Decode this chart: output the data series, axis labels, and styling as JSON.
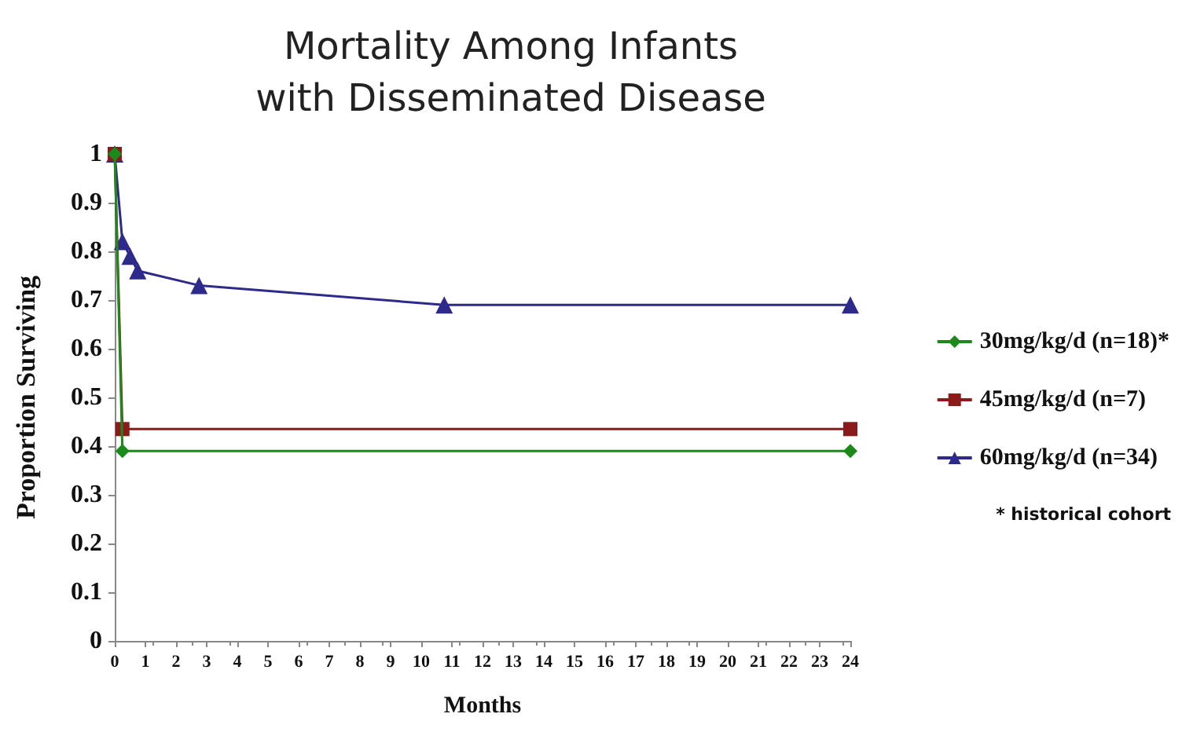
{
  "chart_data": {
    "type": "line",
    "title": "Mortality Among Infants\nwith Disseminated Disease",
    "xlabel": "Months",
    "ylabel": "Proportion Surviving",
    "xlim": [
      0,
      24
    ],
    "xticks": [
      0,
      1,
      2,
      3,
      4,
      5,
      6,
      7,
      8,
      9,
      10,
      11,
      12,
      13,
      14,
      15,
      16,
      17,
      18,
      19,
      20,
      21,
      22,
      23,
      24
    ],
    "ylim": [
      0,
      1
    ],
    "yticks": [
      0,
      0.1,
      0.2,
      0.3,
      0.4,
      0.5,
      0.6,
      0.7,
      0.8,
      0.9,
      1
    ],
    "series": [
      {
        "name": "30mg/kg/d (n=18)*",
        "color": "#1a8a1a",
        "marker": "diamond",
        "x": [
          0,
          0.25,
          24
        ],
        "values": [
          1,
          0.39,
          0.39
        ]
      },
      {
        "name": "45mg/kg/d (n=7)",
        "color": "#8b1a1a",
        "marker": "square",
        "x": [
          0,
          0.25,
          24
        ],
        "values": [
          1,
          0.435,
          0.435
        ]
      },
      {
        "name": "60mg/kg/d (n=34)",
        "color": "#2e2a8c",
        "marker": "triangle",
        "x": [
          0,
          0.25,
          0.5,
          0.75,
          2.75,
          10.75,
          24
        ],
        "values": [
          1,
          0.82,
          0.79,
          0.76,
          0.73,
          0.69,
          0.69
        ]
      }
    ],
    "annotations": [
      "* historical cohort"
    ],
    "legend": "right",
    "grid": false
  }
}
